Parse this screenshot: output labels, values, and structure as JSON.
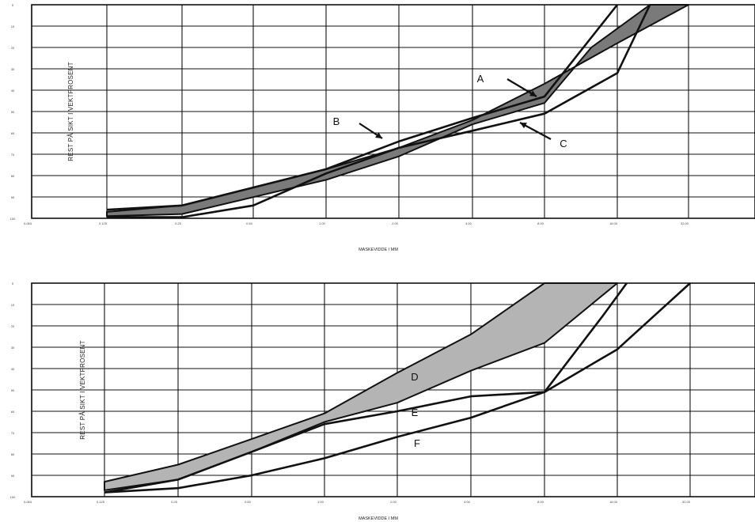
{
  "chart_data": [
    {
      "type": "line",
      "title": "",
      "xlabel": "MASKEVIDDE I MM",
      "ylabel": "REST PÅ SIKT I VEKTPROSENT",
      "x_ticks": [
        "0.063",
        "0.125",
        "0.25",
        "0.50",
        "1.00",
        "2.00",
        "4.00",
        "8.00",
        "16.00",
        "32.00"
      ],
      "y_ticks": [
        "0",
        "10",
        "20",
        "30",
        "40",
        "50",
        "60",
        "70",
        "80",
        "90",
        "100"
      ],
      "ylim": [
        0,
        100
      ],
      "y_inverted": true,
      "grid": true,
      "band_color": "#7a7a7a",
      "bands": [
        {
          "name": "A",
          "upper": [
            [
              0.125,
              97
            ],
            [
              0.25,
              94
            ],
            [
              1.0,
              77
            ],
            [
              2.0,
              67
            ],
            [
              4.0,
              54
            ],
            [
              8.0,
              37
            ],
            [
              16.0,
              18
            ],
            [
              32.0,
              0
            ]
          ],
          "lower": [
            [
              0.125,
              99
            ],
            [
              0.25,
              98
            ],
            [
              1.0,
              82
            ],
            [
              2.0,
              71
            ],
            [
              4.0,
              56
            ],
            [
              8.0,
              46
            ],
            [
              12.5,
              20
            ],
            [
              22.0,
              0
            ]
          ]
        }
      ],
      "series": [
        {
          "name": "B",
          "points": [
            [
              0.125,
              96
            ],
            [
              0.25,
              94
            ],
            [
              1.0,
              77
            ],
            [
              2.0,
              64
            ],
            [
              4.0,
              53
            ],
            [
              8.0,
              43
            ],
            [
              16.0,
              0
            ]
          ]
        },
        {
          "name": "C",
          "points": [
            [
              0.125,
              99.5
            ],
            [
              0.25,
              99.5
            ],
            [
              0.5,
              94
            ],
            [
              1.0,
              79
            ],
            [
              2.0,
              67
            ],
            [
              4.0,
              59
            ],
            [
              8.0,
              51
            ],
            [
              16.0,
              32
            ],
            [
              22.0,
              0
            ]
          ]
        }
      ],
      "annotations": [
        {
          "text": "A",
          "x": 5.4,
          "y": 34,
          "arrow_to": [
            7.0,
            42
          ]
        },
        {
          "text": "B",
          "x": 1.1,
          "y": 54,
          "arrow_to": [
            1.75,
            62
          ]
        },
        {
          "text": "C",
          "x": 11.0,
          "y": 66,
          "arrow_to": [
            6.0,
            54
          ]
        }
      ]
    },
    {
      "type": "line",
      "title": "",
      "xlabel": "MASKEVIDDE I MM",
      "ylabel": "REST PÅ SIKT I VEKTPROSENT",
      "x_ticks": [
        "0.063",
        "0.125",
        "0.25",
        "0.50",
        "1.00",
        "2.00",
        "4.00",
        "8.00",
        "16.00",
        "32.00"
      ],
      "y_ticks": [
        "0",
        "10",
        "20",
        "30",
        "40",
        "50",
        "60",
        "70",
        "80",
        "90",
        "100"
      ],
      "ylim": [
        0,
        100
      ],
      "y_inverted": true,
      "grid": true,
      "band_color": "#b4b4b4",
      "bands": [
        {
          "name": "D",
          "upper": [
            [
              0.125,
              93
            ],
            [
              0.25,
              85
            ],
            [
              0.5,
              73
            ],
            [
              1.0,
              61
            ],
            [
              2.0,
              42
            ],
            [
              4.0,
              24
            ],
            [
              8.0,
              0
            ],
            [
              16.0,
              0
            ]
          ],
          "lower": [
            [
              0.125,
              97
            ],
            [
              0.25,
              92
            ],
            [
              0.5,
              79
            ],
            [
              1.0,
              65
            ],
            [
              2.0,
              56
            ],
            [
              4.0,
              41
            ],
            [
              8.0,
              28
            ],
            [
              16.0,
              0
            ]
          ]
        }
      ],
      "series": [
        {
          "name": "E",
          "points": [
            [
              0.125,
              98
            ],
            [
              0.25,
              92
            ],
            [
              0.5,
              79
            ],
            [
              1.0,
              66
            ],
            [
              2.0,
              60
            ],
            [
              4.0,
              53
            ],
            [
              8.0,
              51
            ],
            [
              14.0,
              15
            ],
            [
              17.5,
              0
            ]
          ]
        },
        {
          "name": "F",
          "points": [
            [
              0.125,
              98
            ],
            [
              0.25,
              96
            ],
            [
              0.5,
              90
            ],
            [
              1.0,
              82
            ],
            [
              2.0,
              72
            ],
            [
              4.0,
              63
            ],
            [
              8.0,
              51
            ],
            [
              16.0,
              31
            ],
            [
              32.0,
              0
            ]
          ]
        }
      ],
      "annotations": [
        {
          "text": "D",
          "x": 2.8,
          "y": 44
        },
        {
          "text": "E",
          "x": 2.8,
          "y": 61
        },
        {
          "text": "F",
          "x": 2.8,
          "y": 74
        }
      ]
    }
  ]
}
